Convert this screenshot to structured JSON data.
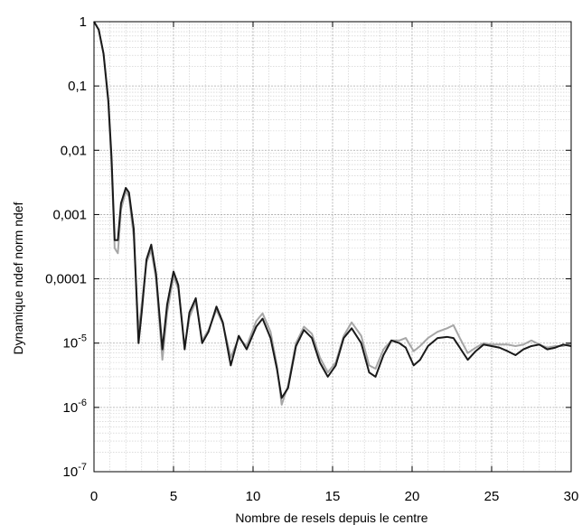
{
  "chart_data": {
    "type": "line",
    "title": "",
    "xlabel": "Nombre de resels depuis le centre",
    "ylabel": "Dynamique ndef norm ndef",
    "xlim": [
      0,
      30
    ],
    "ylim": [
      1e-07,
      1
    ],
    "y_scale": "log",
    "grid": true,
    "x_ticks": [
      0,
      5,
      10,
      15,
      20,
      25,
      30
    ],
    "x_tick_labels": [
      "0",
      "5",
      "10",
      "15",
      "20",
      "25",
      "30"
    ],
    "y_ticks": [
      1,
      0.1,
      0.01,
      0.001,
      0.0001,
      1e-05,
      1e-06,
      1e-07
    ],
    "y_tick_labels": [
      {
        "text": "1"
      },
      {
        "text": "0,1"
      },
      {
        "text": "0,01"
      },
      {
        "text": "0,001"
      },
      {
        "text": "0,0001"
      },
      {
        "base": "10",
        "exp": "-5"
      },
      {
        "base": "10",
        "exp": "-6"
      },
      {
        "base": "10",
        "exp": "-7"
      }
    ],
    "colors": {
      "series_dark": "#1a1a1a",
      "series_light": "#a6a6a6"
    },
    "series": [
      {
        "color": "#1a1a1a",
        "points": [
          [
            0,
            1
          ],
          [
            0.3,
            0.75
          ],
          [
            0.6,
            0.32
          ],
          [
            0.9,
            0.06
          ],
          [
            1.1,
            0.008
          ],
          [
            1.3,
            0.0004
          ],
          [
            1.5,
            0.0004
          ],
          [
            1.7,
            0.0015
          ],
          [
            2.0,
            0.0026
          ],
          [
            2.2,
            0.0022
          ],
          [
            2.5,
            0.0006
          ],
          [
            2.8,
            1e-05
          ],
          [
            3.0,
            3e-05
          ],
          [
            3.3,
            0.0002
          ],
          [
            3.6,
            0.00034
          ],
          [
            3.9,
            0.00012
          ],
          [
            4.3,
            8e-06
          ],
          [
            4.6,
            4e-05
          ],
          [
            5.0,
            0.00013
          ],
          [
            5.3,
            8e-05
          ],
          [
            5.7,
            8e-06
          ],
          [
            6.0,
            3e-05
          ],
          [
            6.4,
            5e-05
          ],
          [
            6.8,
            1e-05
          ],
          [
            7.2,
            1.5e-05
          ],
          [
            7.7,
            3.7e-05
          ],
          [
            8.1,
            2.1e-05
          ],
          [
            8.6,
            4.5e-06
          ],
          [
            9.1,
            1.3e-05
          ],
          [
            9.6,
            8e-06
          ],
          [
            10.2,
            1.8e-05
          ],
          [
            10.6,
            2.4e-05
          ],
          [
            11.1,
            1.2e-05
          ],
          [
            11.5,
            4e-06
          ],
          [
            11.8,
            1.4e-06
          ],
          [
            12.2,
            2e-06
          ],
          [
            12.7,
            9e-06
          ],
          [
            13.2,
            1.6e-05
          ],
          [
            13.7,
            1.2e-05
          ],
          [
            14.2,
            5e-06
          ],
          [
            14.7,
            3e-06
          ],
          [
            15.2,
            4.5e-06
          ],
          [
            15.7,
            1.2e-05
          ],
          [
            16.2,
            1.7e-05
          ],
          [
            16.8,
            1e-05
          ],
          [
            17.3,
            3.5e-06
          ],
          [
            17.7,
            3e-06
          ],
          [
            18.2,
            6.5e-06
          ],
          [
            18.7,
            1.1e-05
          ],
          [
            19.2,
            1e-05
          ],
          [
            19.6,
            8.5e-06
          ],
          [
            20.1,
            4.5e-06
          ],
          [
            20.5,
            5.5e-06
          ],
          [
            21.0,
            9e-06
          ],
          [
            21.6,
            1.2e-05
          ],
          [
            22.2,
            1.25e-05
          ],
          [
            22.6,
            1.2e-05
          ],
          [
            23.0,
            8.5e-06
          ],
          [
            23.5,
            5.5e-06
          ],
          [
            24.0,
            7.5e-06
          ],
          [
            24.5,
            9.5e-06
          ],
          [
            25.0,
            9e-06
          ],
          [
            25.5,
            8.5e-06
          ],
          [
            26.0,
            7.5e-06
          ],
          [
            26.5,
            6.5e-06
          ],
          [
            27.0,
            8e-06
          ],
          [
            27.5,
            9e-06
          ],
          [
            28.0,
            9.5e-06
          ],
          [
            28.5,
            8e-06
          ],
          [
            29.0,
            8.5e-06
          ],
          [
            29.5,
            9.5e-06
          ],
          [
            30.0,
            9e-06
          ]
        ]
      },
      {
        "color": "#a6a6a6",
        "points": [
          [
            0,
            1
          ],
          [
            0.3,
            0.74
          ],
          [
            0.6,
            0.31
          ],
          [
            0.9,
            0.055
          ],
          [
            1.1,
            0.006
          ],
          [
            1.3,
            0.0003
          ],
          [
            1.5,
            0.00025
          ],
          [
            1.7,
            0.0012
          ],
          [
            2.0,
            0.0023
          ],
          [
            2.2,
            0.0019
          ],
          [
            2.5,
            0.00045
          ],
          [
            2.8,
            1.5e-05
          ],
          [
            3.0,
            4e-05
          ],
          [
            3.3,
            0.00018
          ],
          [
            3.6,
            0.00028
          ],
          [
            3.9,
            0.0001
          ],
          [
            4.3,
            5.5e-06
          ],
          [
            4.6,
            3e-05
          ],
          [
            5.0,
            0.00011
          ],
          [
            5.3,
            7e-05
          ],
          [
            5.7,
            9e-06
          ],
          [
            6.0,
            2.5e-05
          ],
          [
            6.4,
            4.5e-05
          ],
          [
            6.8,
            1.1e-05
          ],
          [
            7.2,
            1.6e-05
          ],
          [
            7.7,
            3.3e-05
          ],
          [
            8.1,
            2e-05
          ],
          [
            8.6,
            6e-06
          ],
          [
            9.1,
            1.2e-05
          ],
          [
            9.6,
            9e-06
          ],
          [
            10.2,
            2.2e-05
          ],
          [
            10.6,
            2.9e-05
          ],
          [
            11.1,
            1.5e-05
          ],
          [
            11.5,
            4.5e-06
          ],
          [
            11.8,
            1.1e-06
          ],
          [
            12.2,
            2.2e-06
          ],
          [
            12.7,
            1e-05
          ],
          [
            13.2,
            1.8e-05
          ],
          [
            13.7,
            1.4e-05
          ],
          [
            14.2,
            6e-06
          ],
          [
            14.7,
            3.5e-06
          ],
          [
            15.2,
            5e-06
          ],
          [
            15.7,
            1.3e-05
          ],
          [
            16.2,
            2.1e-05
          ],
          [
            16.8,
            1.3e-05
          ],
          [
            17.3,
            4.5e-06
          ],
          [
            17.7,
            4e-06
          ],
          [
            18.2,
            8e-06
          ],
          [
            18.7,
            1.1e-05
          ],
          [
            19.2,
            1.1e-05
          ],
          [
            19.6,
            1.2e-05
          ],
          [
            20.1,
            7.5e-06
          ],
          [
            20.5,
            9e-06
          ],
          [
            21.0,
            1.2e-05
          ],
          [
            21.6,
            1.5e-05
          ],
          [
            22.2,
            1.7e-05
          ],
          [
            22.6,
            1.9e-05
          ],
          [
            23.0,
            1.2e-05
          ],
          [
            23.5,
            7e-06
          ],
          [
            24.0,
            8.5e-06
          ],
          [
            24.5,
            1e-05
          ],
          [
            25.0,
            9.5e-06
          ],
          [
            25.5,
            9.5e-06
          ],
          [
            26.0,
            9.5e-06
          ],
          [
            26.5,
            9e-06
          ],
          [
            27.0,
            9.5e-06
          ],
          [
            27.5,
            1.1e-05
          ],
          [
            28.0,
            9.5e-06
          ],
          [
            28.5,
            8.5e-06
          ],
          [
            29.0,
            9e-06
          ],
          [
            29.5,
            9e-06
          ],
          [
            30.0,
            1e-05
          ]
        ]
      }
    ]
  }
}
